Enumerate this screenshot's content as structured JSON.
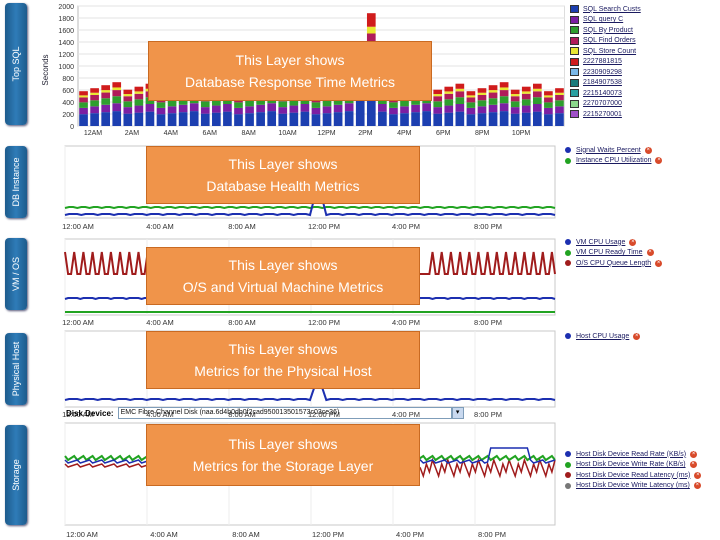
{
  "tabs": {
    "top_sql": "Top SQL",
    "db_instance": "DB Instance",
    "vm_os": "VM / OS",
    "physical_host": "Physical Host",
    "storage": "Storage"
  },
  "overlays": {
    "top_sql": [
      "This Layer shows",
      "Database Response Time Metrics"
    ],
    "db_instance": [
      "This Layer shows",
      "Database Health Metrics"
    ],
    "vm_os": [
      "This Layer shows",
      "O/S and Virtual Machine Metrics"
    ],
    "physical_host": [
      "This Layer shows",
      "Metrics for the Physical Host"
    ],
    "storage": [
      "This Layer shows",
      "Metrics for the Storage Layer"
    ]
  },
  "top_sql": {
    "ylabel": "Seconds",
    "y_ticks": [
      "2000",
      "1800",
      "1600",
      "1400",
      "1200",
      "1000",
      "800",
      "600",
      "400",
      "200",
      "0"
    ],
    "x_ticks": [
      "12AM",
      "2AM",
      "4AM",
      "6AM",
      "8AM",
      "10AM",
      "12PM",
      "2PM",
      "4PM",
      "6PM",
      "8PM",
      "10PM"
    ],
    "legend": [
      {
        "label": "SQL Search Custs",
        "color": "#1c3fb0"
      },
      {
        "label": "SQL query C",
        "color": "#7b1fa2"
      },
      {
        "label": "SQL By Product",
        "color": "#2e9e2e"
      },
      {
        "label": "SQL Find Orders",
        "color": "#b01c5a"
      },
      {
        "label": "SQL Store Count",
        "color": "#e8e832"
      },
      {
        "label": "2227881815",
        "color": "#d01c1c"
      },
      {
        "label": "2230909298",
        "color": "#7ab8e8"
      },
      {
        "label": "2184907538",
        "color": "#1a7a7a"
      },
      {
        "label": "2215140073",
        "color": "#2aa0a0"
      },
      {
        "label": "2270707000",
        "color": "#8bd88b"
      },
      {
        "label": "2215270001",
        "color": "#a050c8"
      }
    ]
  },
  "db_instance": {
    "x_ticks": [
      "12:00 AM",
      "4:00 AM",
      "8:00 AM",
      "12:00 PM",
      "4:00 PM",
      "8:00 PM"
    ],
    "legend": [
      {
        "label": "Signal Waits Percent",
        "color": "#1c2fb0"
      },
      {
        "label": "Instance CPU Utilization",
        "color": "#21a321"
      }
    ]
  },
  "vm_os": {
    "x_ticks": [
      "12:00 AM",
      "4:00 AM",
      "8:00 AM",
      "12:00 PM",
      "4:00 PM",
      "8:00 PM"
    ],
    "legend": [
      {
        "label": "VM CPU Usage",
        "color": "#1c2fb0"
      },
      {
        "label": "VM CPU Ready Time",
        "color": "#21a321"
      },
      {
        "label": "O/S CPU Queue Length",
        "color": "#a01c1c"
      }
    ]
  },
  "physical_host": {
    "x_ticks": [
      "12:00 AM",
      "4:00 AM",
      "8:00 AM",
      "12:00 PM",
      "4:00 PM",
      "8:00 PM"
    ],
    "legend": [
      {
        "label": "Host CPU Usage",
        "color": "#1c2fb0"
      }
    ]
  },
  "storage": {
    "disk_label": "Disk Device:",
    "disk_value": "EMC Fibre Channel Disk (naa.6d4b0db0f2cad950013501573c03ce36)",
    "x_ticks": [
      "12:00 AM",
      "4:00 AM",
      "8:00 AM",
      "12:00 PM",
      "4:00 PM",
      "8:00 PM"
    ],
    "legend": [
      {
        "label": "Host Disk Device Read Rate (KB/s)",
        "color": "#1c2fb0"
      },
      {
        "label": "Host Disk Device Write Rate (KB/s)",
        "color": "#21a321"
      },
      {
        "label": "Host Disk Device Read Latency (ms)",
        "color": "#a01c1c"
      },
      {
        "label": "Host Disk Device Write Latency (ms)",
        "color": "#777777"
      }
    ]
  }
}
